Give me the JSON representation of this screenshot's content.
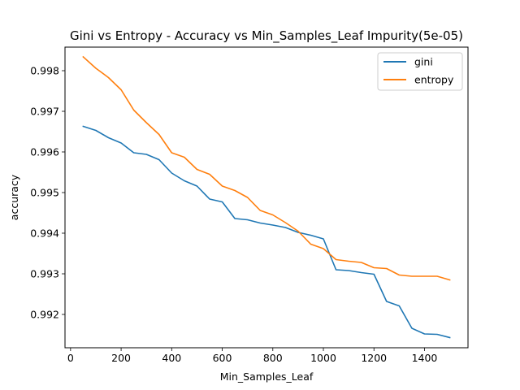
{
  "chart_data": {
    "type": "line",
    "title": "Gini vs Entropy - Accuracy vs Min_Samples_Leaf Impurity(5e-05)",
    "xlabel": "Min_Samples_Leaf",
    "ylabel": "accuracy",
    "xlim": [
      -22,
      1572
    ],
    "ylim": [
      0.99118,
      0.99858
    ],
    "x_ticks": [
      0,
      200,
      400,
      600,
      800,
      1000,
      1200,
      1400
    ],
    "y_ticks": [
      0.992,
      0.993,
      0.994,
      0.995,
      0.996,
      0.997,
      0.998
    ],
    "grid": false,
    "legend_position": "top-right",
    "x": [
      50,
      100,
      150,
      200,
      250,
      300,
      350,
      400,
      450,
      500,
      550,
      600,
      650,
      700,
      750,
      800,
      850,
      900,
      950,
      1000,
      1050,
      1100,
      1150,
      1200,
      1250,
      1300,
      1350,
      1400,
      1450,
      1500
    ],
    "series": [
      {
        "name": "gini",
        "color": "#1f77b4",
        "values": [
          0.99663,
          0.99653,
          0.99635,
          0.99622,
          0.99598,
          0.99594,
          0.99581,
          0.99548,
          0.99529,
          0.99516,
          0.99484,
          0.99477,
          0.99436,
          0.99433,
          0.99425,
          0.9942,
          0.99414,
          0.99402,
          0.99395,
          0.99386,
          0.9931,
          0.99308,
          0.99303,
          0.99299,
          0.99232,
          0.99221,
          0.99166,
          0.99152,
          0.99151,
          0.99143
        ]
      },
      {
        "name": "entropy",
        "color": "#ff7f0e",
        "values": [
          0.99834,
          0.99806,
          0.99783,
          0.99753,
          0.99703,
          0.99672,
          0.99643,
          0.99598,
          0.99587,
          0.99557,
          0.99545,
          0.99516,
          0.99505,
          0.99488,
          0.99456,
          0.99445,
          0.99426,
          0.99405,
          0.99373,
          0.99362,
          0.99335,
          0.99331,
          0.99328,
          0.99315,
          0.99313,
          0.99297,
          0.99294,
          0.99294,
          0.99294,
          0.99285
        ]
      }
    ]
  }
}
